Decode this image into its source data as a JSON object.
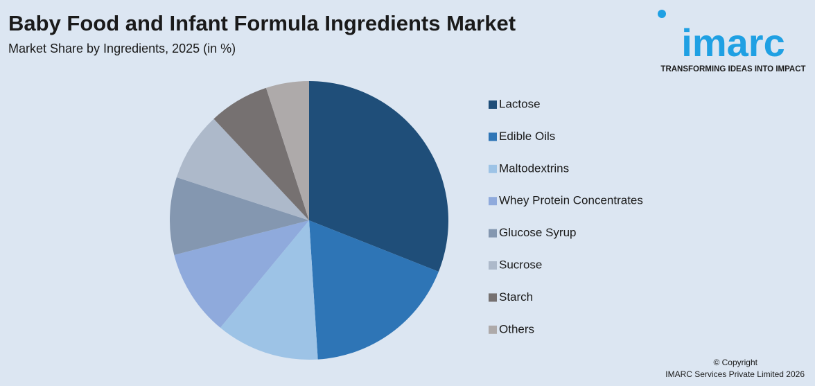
{
  "chart_data": {
    "type": "pie",
    "title": "Baby Food and Infant Formula Ingredients Market",
    "subtitle": "Market Share by Ingredients, 2025 (in %)",
    "categories": [
      "Lactose",
      "Edible Oils",
      "Maltodextrins",
      "Whey Protein Concentrates",
      "Glucose Syrup",
      "Sucrose",
      "Starch",
      "Others"
    ],
    "values": [
      31,
      18,
      12,
      10,
      9,
      8,
      7,
      5
    ],
    "colors": [
      "#1f4e79",
      "#2e75b6",
      "#9dc3e6",
      "#8faadc",
      "#8497b0",
      "#adb9ca",
      "#767171",
      "#aeaaaa"
    ],
    "legend": "right"
  },
  "logo": {
    "name": "imarc",
    "tagline": "TRANSFORMING IDEAS INTO IMPACT"
  },
  "footer": {
    "copyright": "© Copyright",
    "company": "IMARC Services Private Limited 2026"
  }
}
